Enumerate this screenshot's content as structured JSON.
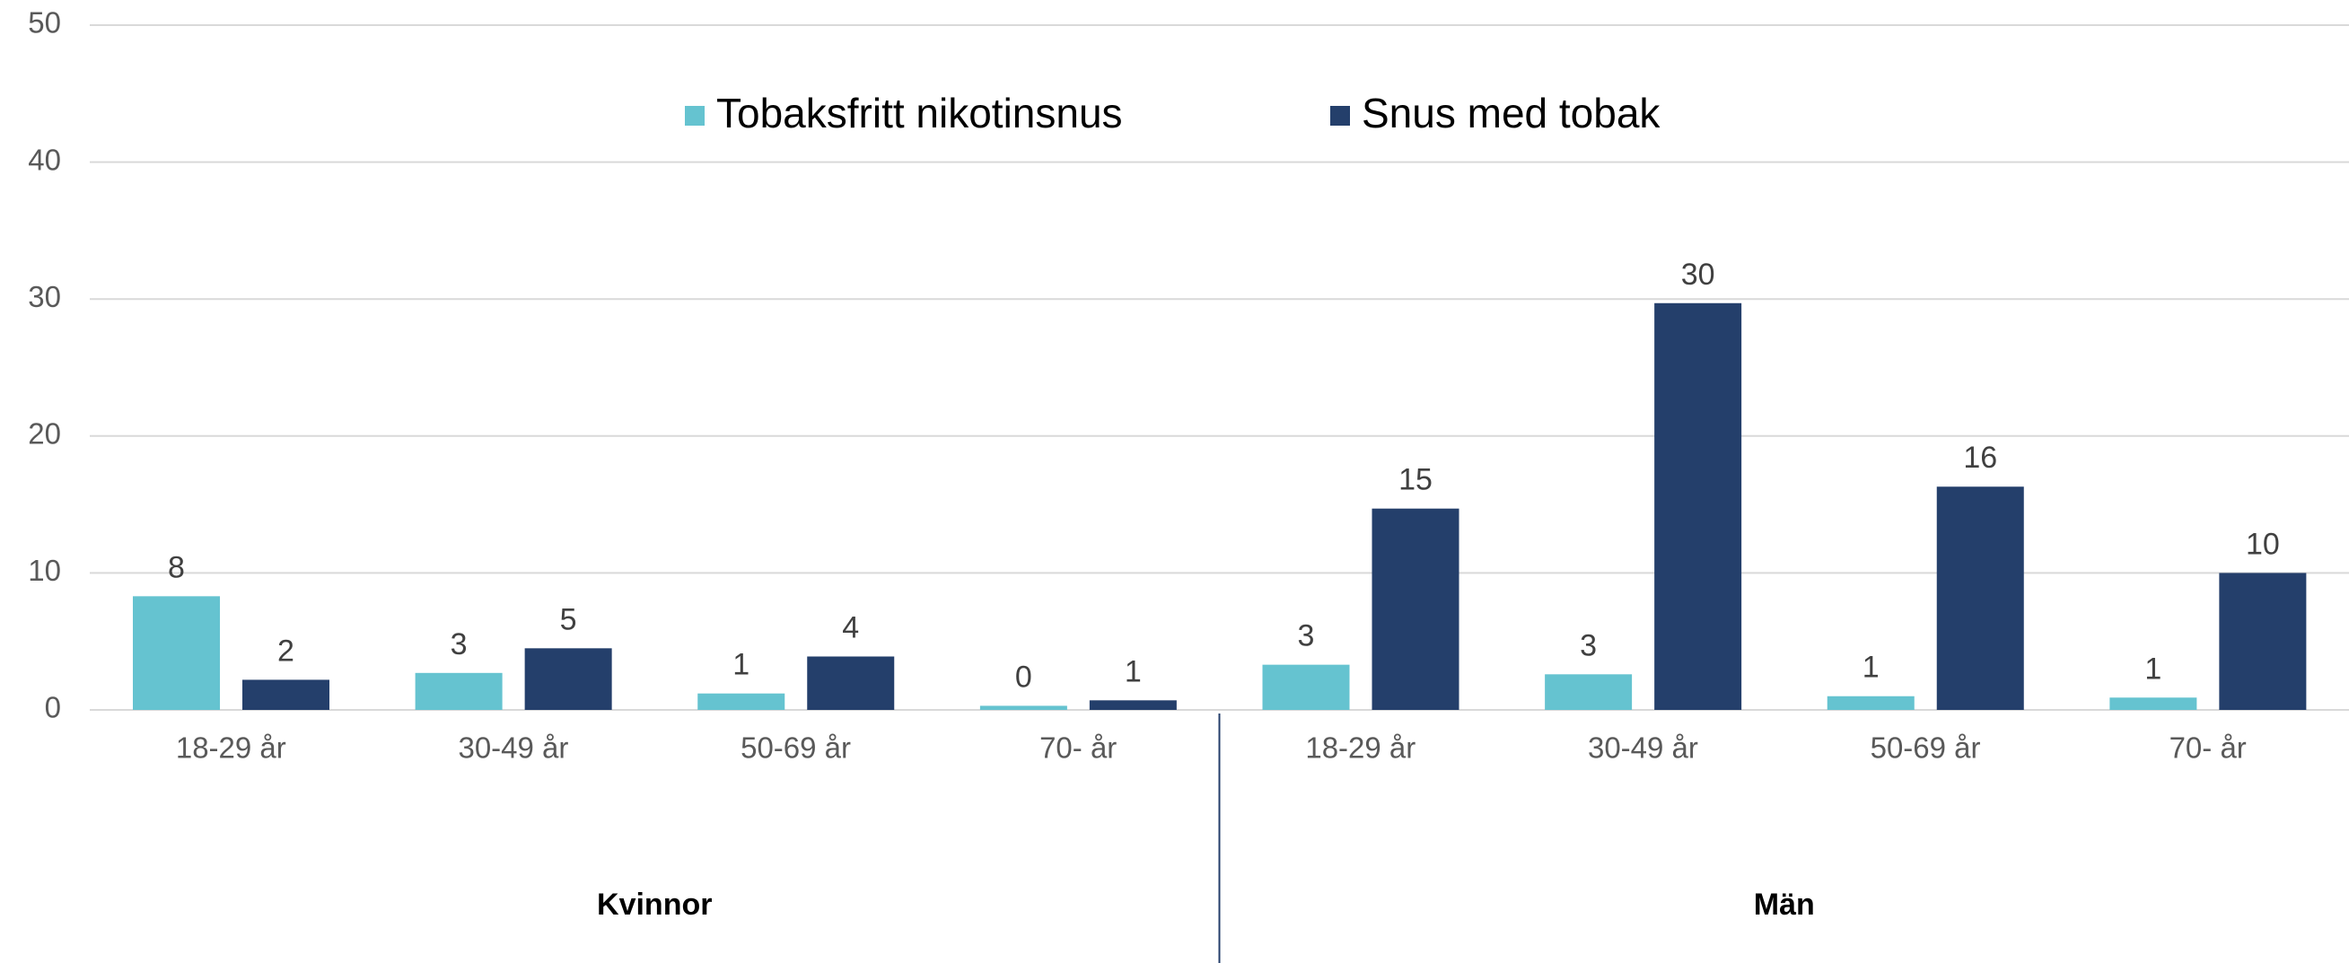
{
  "chart_data": {
    "type": "bar",
    "categories": [
      "18-29 år",
      "30-49 år",
      "50-69 år",
      "70- år",
      "18-29 år",
      "30-49 år",
      "50-69 år",
      "70- år"
    ],
    "group_labels": [
      "Kvinnor",
      "Män"
    ],
    "series": [
      {
        "name": "Tobaksfritt nikotinsnus",
        "color": "#65c3d0",
        "values": [
          8.3,
          2.7,
          1.2,
          0.3,
          3.3,
          2.6,
          1.0,
          0.9
        ],
        "value_labels": [
          "8",
          "3",
          "1",
          "0",
          "3",
          "3",
          "1",
          "1"
        ]
      },
      {
        "name": "Snus med tobak",
        "color": "#243f6b",
        "values": [
          2.2,
          4.5,
          3.9,
          0.7,
          14.7,
          29.7,
          16.3,
          10.0
        ],
        "value_labels": [
          "2",
          "5",
          "4",
          "1",
          "15",
          "30",
          "16",
          "10"
        ]
      }
    ],
    "ylim": [
      0,
      50
    ],
    "yticks": [
      0,
      10,
      20,
      30,
      40,
      50
    ],
    "grid": true,
    "legend": "top"
  }
}
